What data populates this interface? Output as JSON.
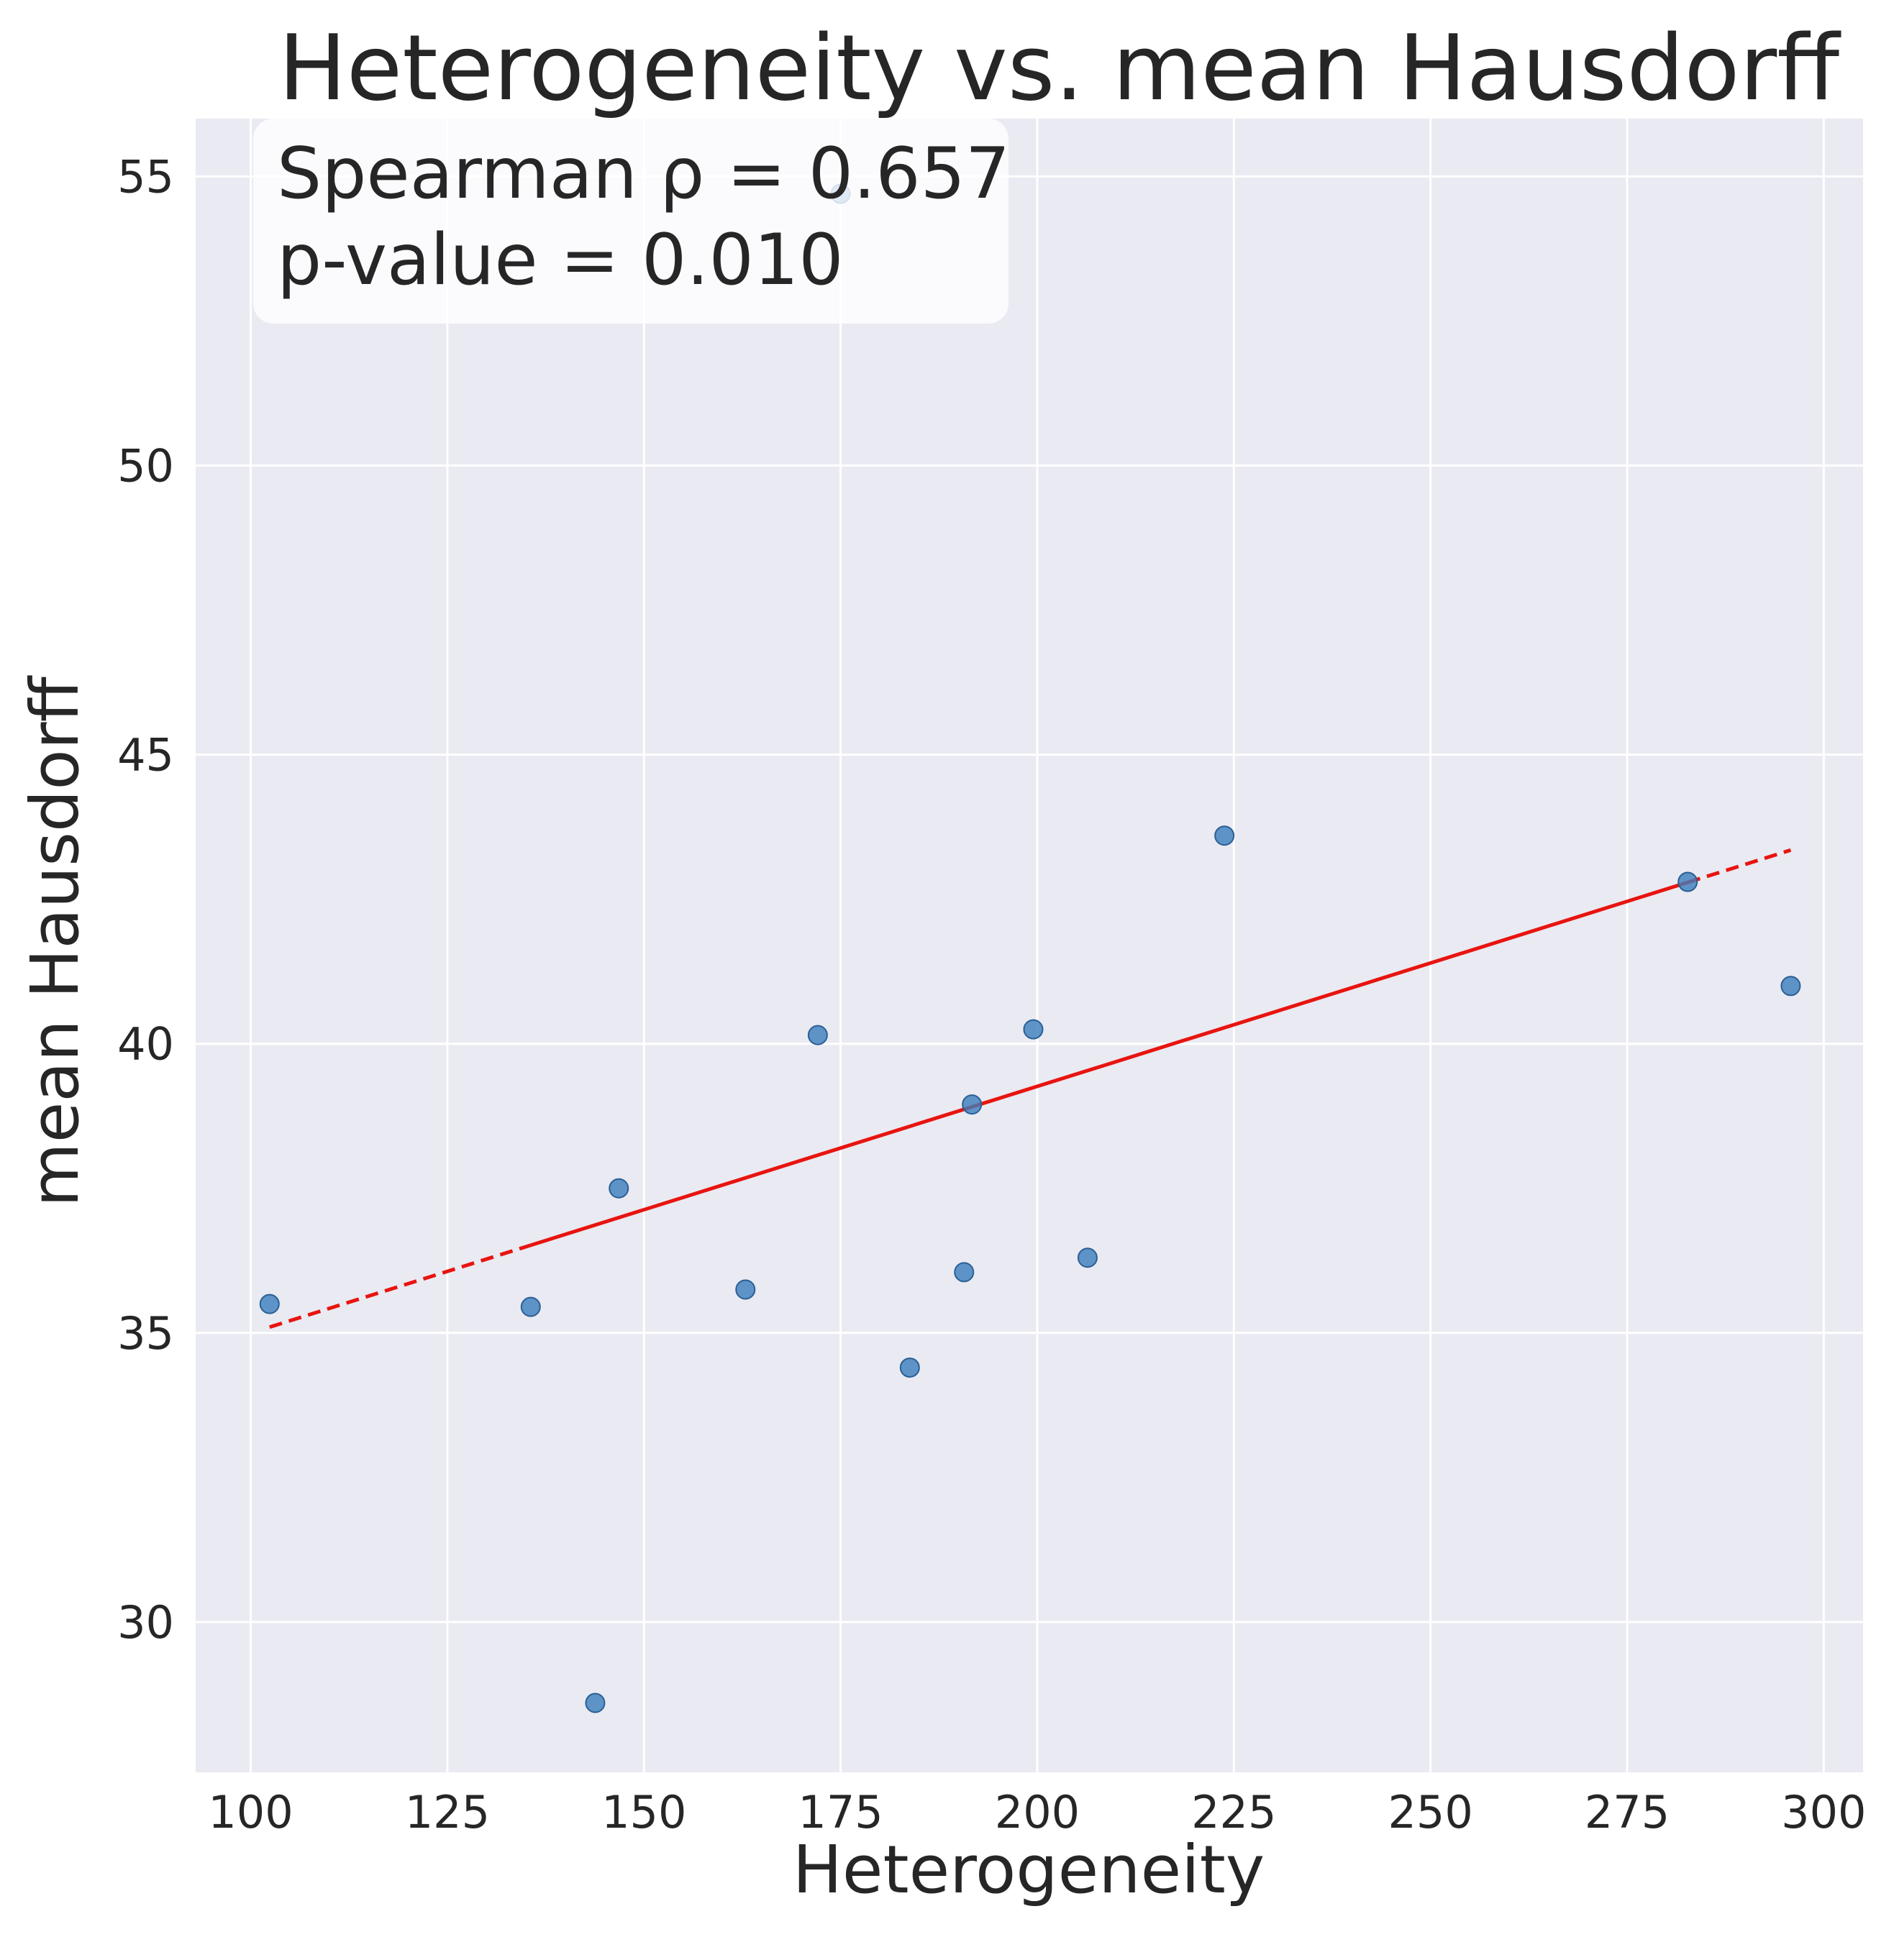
{
  "chart_data": {
    "type": "scatter",
    "title": "Heterogeneity vs. mean Hausdorff",
    "xlabel": "Heterogeneity",
    "ylabel": "mean Hausdorff",
    "xlim": [
      93,
      305
    ],
    "ylim": [
      27.4,
      56.0
    ],
    "xticks": [
      100,
      125,
      150,
      175,
      200,
      225,
      250,
      275,
      300
    ],
    "yticks": [
      30,
      35,
      40,
      45,
      50,
      55
    ],
    "grid": true,
    "points": {
      "x": [
        102.4,
        135.6,
        143.8,
        146.8,
        162.9,
        172.1,
        175.0,
        183.8,
        190.7,
        191.7,
        199.5,
        206.4,
        223.8,
        282.7,
        295.8
      ],
      "y": [
        35.5,
        35.45,
        28.6,
        37.5,
        35.75,
        40.15,
        54.7,
        34.4,
        36.05,
        38.95,
        40.25,
        36.3,
        43.6,
        42.8,
        41.0
      ],
      "color": "#3b7dbb"
    },
    "fit_line": {
      "x_start": 102.4,
      "y_start": 35.1,
      "x_end": 295.8,
      "y_end": 43.35,
      "dash_until_x": 135.6,
      "dash_after_x": 282.7,
      "color": "#e8140f"
    },
    "annotation": {
      "line1": "Spearman ρ = 0.657",
      "line2": "p-value = 0.010",
      "position": "top-left"
    }
  }
}
